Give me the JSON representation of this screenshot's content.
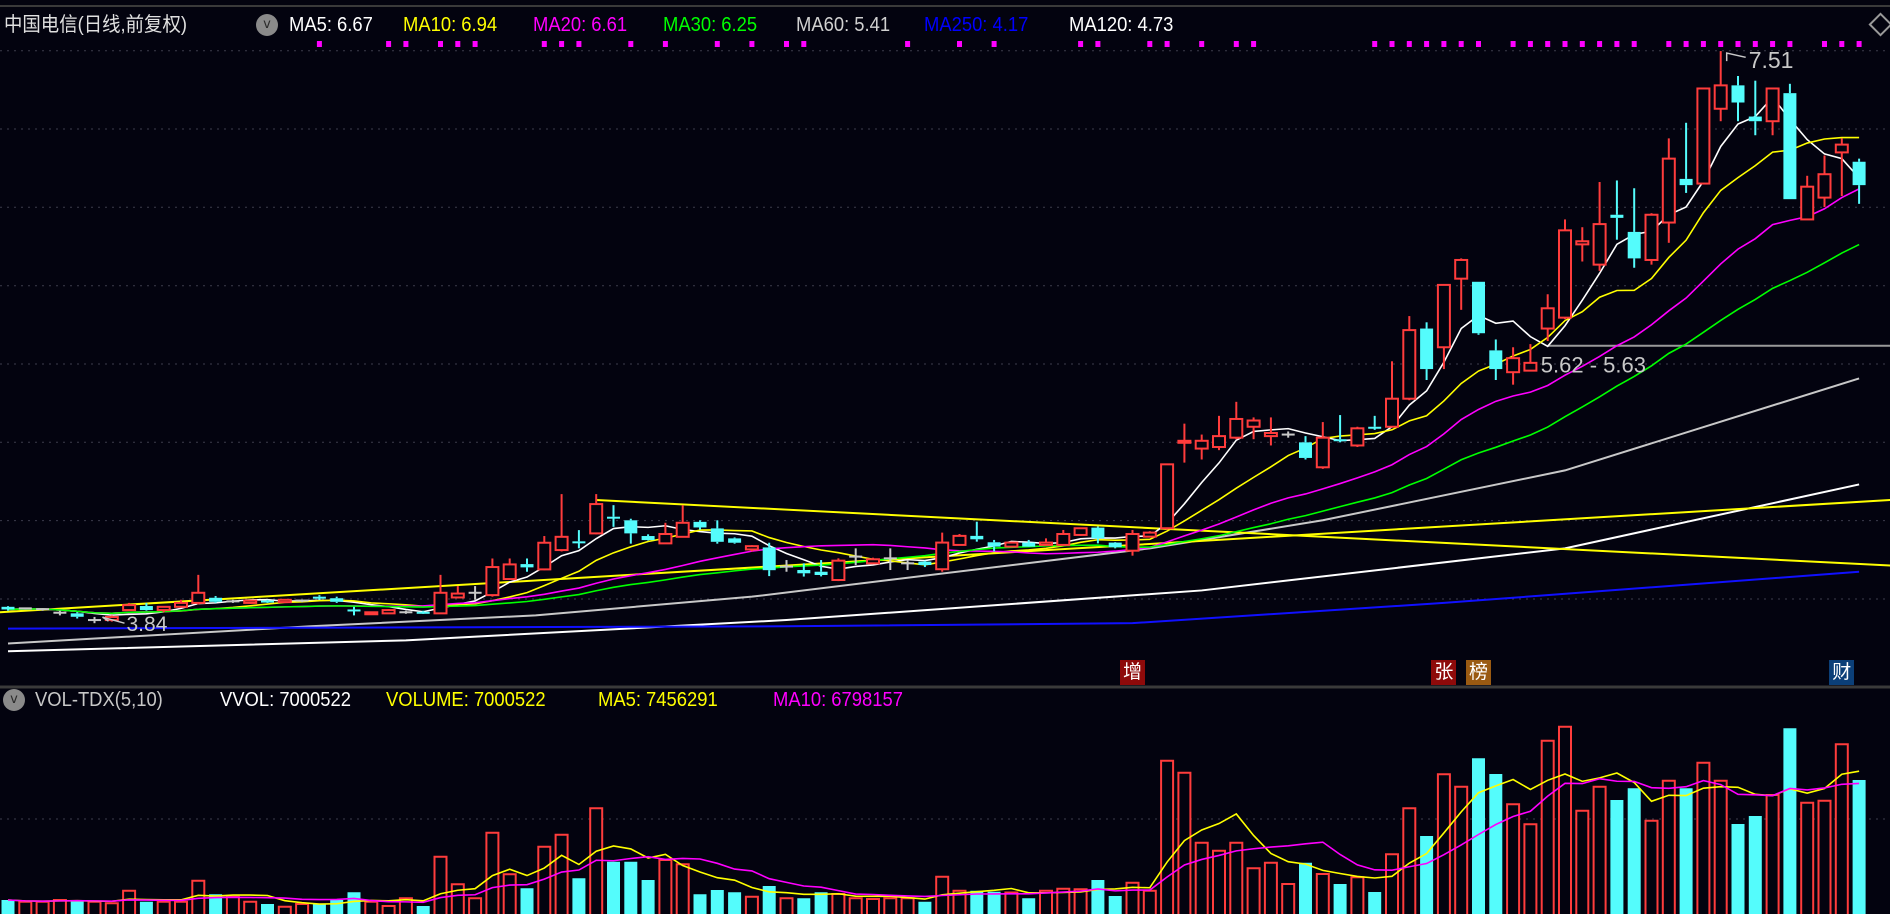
{
  "price_header": {
    "title": "中国电信(日线,前复权)",
    "dropdown_icon": "chevron-down-icon",
    "ma_items": [
      {
        "label": "MA5: 6.67",
        "color": "#ffffff"
      },
      {
        "label": "MA10: 6.94",
        "color": "#ffff00"
      },
      {
        "label": "MA20: 6.61",
        "color": "#ff00ff"
      },
      {
        "label": "MA30: 6.25",
        "color": "#00ff00"
      },
      {
        "label": "MA60: 5.41",
        "color": "#d0d0d0"
      },
      {
        "label": "MA250: 4.17",
        "color": "#0000ff"
      },
      {
        "label": "MA120: 4.73",
        "color": "#ffffff"
      }
    ],
    "corner_icon": "diamond-icon"
  },
  "volume_header": {
    "indicator": "VOL-TDX(5,10)",
    "vvol": "VVOL: 7000522",
    "volume": "VOLUME: 7000522",
    "ma5": "MA5: 7456291",
    "ma10": "MA10: 6798157"
  },
  "colors": {
    "up": "#ff3c3c",
    "down": "#54fcfc",
    "flat": "#c8c8c8",
    "background": "#03030f"
  },
  "chart_data": {
    "type": "candlestick",
    "price_ylim": [
      3.437,
      7.581
    ],
    "volume_ylim": [
      0,
      9800000
    ],
    "annotations": {
      "high": "7.51",
      "low": "3.84",
      "level_label": "5.62 - 5.63",
      "level_value": 5.62,
      "level_from_bar": 89
    },
    "ohlc": [
      [
        3.945,
        3.95,
        3.92,
        3.928
      ],
      [
        3.935,
        3.94,
        3.93,
        3.935
      ],
      [
        3.93,
        3.935,
        3.92,
        3.93
      ],
      [
        3.907,
        3.92,
        3.89,
        3.907
      ],
      [
        3.903,
        3.91,
        3.87,
        3.881
      ],
      [
        3.86,
        3.88,
        3.84,
        3.86
      ],
      [
        3.86,
        3.89,
        3.85,
        3.88
      ],
      [
        3.924,
        3.97,
        3.92,
        3.956
      ],
      [
        3.95,
        3.97,
        3.92,
        3.924
      ],
      [
        3.924,
        3.95,
        3.91,
        3.945
      ],
      [
        3.945,
        3.99,
        3.94,
        3.97
      ],
      [
        3.97,
        4.15,
        3.96,
        4.035
      ],
      [
        4.003,
        4.014,
        3.97,
        3.977
      ],
      [
        3.98,
        3.99,
        3.97,
        3.98
      ],
      [
        3.97,
        3.99,
        3.965,
        3.985
      ],
      [
        3.985,
        3.99,
        3.97,
        3.975
      ],
      [
        3.975,
        3.995,
        3.97,
        3.99
      ],
      [
        3.985,
        3.99,
        3.975,
        3.985
      ],
      [
        4.01,
        4.02,
        3.99,
        4.0
      ],
      [
        4.0,
        4.01,
        3.97,
        3.977
      ],
      [
        3.928,
        3.945,
        3.89,
        3.92
      ],
      [
        3.907,
        3.915,
        3.9,
        3.91
      ],
      [
        3.903,
        3.93,
        3.9,
        3.924
      ],
      [
        3.91,
        3.92,
        3.9,
        3.91
      ],
      [
        3.913,
        3.92,
        3.9,
        3.903
      ],
      [
        3.903,
        4.15,
        3.9,
        4.035
      ],
      [
        4.005,
        4.078,
        4.0,
        4.03
      ],
      [
        4.035,
        4.078,
        3.99,
        4.035
      ],
      [
        4.02,
        4.255,
        4.01,
        4.2
      ],
      [
        4.123,
        4.255,
        4.12,
        4.217
      ],
      [
        4.219,
        4.255,
        4.17,
        4.198
      ],
      [
        4.185,
        4.399,
        4.18,
        4.356
      ],
      [
        4.309,
        4.668,
        4.3,
        4.394
      ],
      [
        4.365,
        4.437,
        4.32,
        4.36
      ],
      [
        4.416,
        4.668,
        4.41,
        4.604
      ],
      [
        4.523,
        4.597,
        4.458,
        4.52
      ],
      [
        4.5,
        4.51,
        4.35,
        4.416
      ],
      [
        4.399,
        4.41,
        4.37,
        4.373
      ],
      [
        4.352,
        4.484,
        4.35,
        4.412
      ],
      [
        4.394,
        4.597,
        4.39,
        4.484
      ],
      [
        4.49,
        4.5,
        4.44,
        4.454
      ],
      [
        4.448,
        4.5,
        4.35,
        4.362
      ],
      [
        4.384,
        4.39,
        4.35,
        4.356
      ],
      [
        4.313,
        4.34,
        4.3,
        4.334
      ],
      [
        4.326,
        4.356,
        4.142,
        4.18
      ],
      [
        4.203,
        4.245,
        4.17,
        4.203
      ],
      [
        4.181,
        4.224,
        4.139,
        4.16
      ],
      [
        4.17,
        4.245,
        4.14,
        4.149
      ],
      [
        4.117,
        4.256,
        4.11,
        4.241
      ],
      [
        4.267,
        4.32,
        4.213,
        4.267
      ],
      [
        4.224,
        4.26,
        4.22,
        4.25
      ],
      [
        4.256,
        4.32,
        4.181,
        4.256
      ],
      [
        4.224,
        4.245,
        4.181,
        4.224
      ],
      [
        4.235,
        4.24,
        4.2,
        4.213
      ],
      [
        4.186,
        4.421,
        4.17,
        4.357
      ],
      [
        4.342,
        4.412,
        4.34,
        4.4
      ],
      [
        4.4,
        4.491,
        4.363,
        4.378
      ],
      [
        4.359,
        4.374,
        4.3,
        4.331
      ],
      [
        4.331,
        4.36,
        4.33,
        4.357
      ],
      [
        4.357,
        4.374,
        4.33,
        4.331
      ],
      [
        4.342,
        4.384,
        4.34,
        4.357
      ],
      [
        4.342,
        4.438,
        4.34,
        4.412
      ],
      [
        4.406,
        4.45,
        4.4,
        4.449
      ],
      [
        4.453,
        4.46,
        4.352,
        4.384
      ],
      [
        4.357,
        4.36,
        4.32,
        4.327
      ],
      [
        4.305,
        4.438,
        4.273,
        4.412
      ],
      [
        4.395,
        4.43,
        4.39,
        4.421
      ],
      [
        4.449,
        4.86,
        4.44,
        4.859
      ],
      [
        5.0,
        5.12,
        4.87,
        5.01
      ],
      [
        4.96,
        5.05,
        4.89,
        5.01
      ],
      [
        4.97,
        5.17,
        4.95,
        5.04
      ],
      [
        5.03,
        5.26,
        5.02,
        5.15
      ],
      [
        5.1,
        5.16,
        5.02,
        5.14
      ],
      [
        5.04,
        5.16,
        4.98,
        5.06
      ],
      [
        5.05,
        5.07,
        5.03,
        5.05
      ],
      [
        5.0,
        5.04,
        4.89,
        4.9
      ],
      [
        4.84,
        5.13,
        4.83,
        5.03
      ],
      [
        5.02,
        5.175,
        5.0,
        5.015
      ],
      [
        4.98,
        5.1,
        4.97,
        5.09
      ],
      [
        5.1,
        5.17,
        5.08,
        5.09
      ],
      [
        5.1,
        5.52,
        5.1,
        5.28
      ],
      [
        5.28,
        5.81,
        5.27,
        5.72
      ],
      [
        5.73,
        5.77,
        5.4,
        5.47
      ],
      [
        5.61,
        6.01,
        5.47,
        6.01
      ],
      [
        6.05,
        6.18,
        5.85,
        6.17
      ],
      [
        6.03,
        6.03,
        5.69,
        5.7
      ],
      [
        5.59,
        5.66,
        5.4,
        5.47
      ],
      [
        5.45,
        5.61,
        5.37,
        5.54
      ],
      [
        5.46,
        5.63,
        5.46,
        5.51
      ],
      [
        5.73,
        5.95,
        5.65,
        5.86
      ],
      [
        5.8,
        6.43,
        5.79,
        6.36
      ],
      [
        6.27,
        6.38,
        6.16,
        6.29
      ],
      [
        6.14,
        6.67,
        6.1,
        6.4
      ],
      [
        6.46,
        6.68,
        6.3,
        6.44
      ],
      [
        6.35,
        6.63,
        6.12,
        6.18
      ],
      [
        6.17,
        6.47,
        6.14,
        6.46
      ],
      [
        6.41,
        6.95,
        6.28,
        6.82
      ],
      [
        6.69,
        7.05,
        6.6,
        6.65
      ],
      [
        6.66,
        7.27,
        6.66,
        7.27
      ],
      [
        7.14,
        7.51,
        7.06,
        7.29
      ],
      [
        7.29,
        7.35,
        7.06,
        7.18
      ],
      [
        7.09,
        7.32,
        6.97,
        7.06
      ],
      [
        7.06,
        7.27,
        6.97,
        7.27
      ],
      [
        7.24,
        7.3,
        6.56,
        6.56
      ],
      [
        6.43,
        6.71,
        6.43,
        6.64
      ],
      [
        6.57,
        6.84,
        6.51,
        6.72
      ],
      [
        6.86,
        6.95,
        6.58,
        6.91
      ],
      [
        6.8,
        6.82,
        6.53,
        6.65
      ]
    ],
    "volume": [
      2200000,
      2130000,
      2130000,
      2200000,
      2200000,
      2130000,
      2070000,
      2570000,
      2130000,
      2130000,
      2130000,
      2970000,
      2430000,
      2330000,
      2130000,
      2040000,
      1930000,
      2040000,
      2040000,
      2200000,
      2510000,
      2130000,
      1960000,
      2270000,
      1960000,
      3930000,
      2830000,
      2270000,
      4890000,
      3230000,
      2670000,
      4330000,
      4810000,
      3070000,
      5870000,
      3730000,
      3730000,
      3000000,
      3800000,
      3630000,
      2430000,
      2600000,
      2510000,
      2330000,
      2760000,
      2270000,
      2270000,
      2510000,
      2440000,
      2270000,
      2240000,
      2270000,
      2270000,
      2130000,
      3130000,
      2570000,
      2570000,
      2530000,
      2500000,
      2270000,
      2570000,
      2650000,
      2630000,
      3000000,
      2360000,
      2890000,
      2570000,
      7770000,
      7290000,
      4490000,
      4170000,
      4490000,
      3470000,
      3690000,
      2840000,
      3690000,
      3240000,
      2840000,
      3110000,
      2520000,
      4030000,
      5870000,
      4760000,
      7230000,
      6730000,
      7870000,
      7240000,
      6030000,
      5230000,
      8570000,
      9130000,
      5770000,
      6730000,
      6200000,
      6670000,
      5370000,
      6970000,
      6670000,
      7690000,
      6970000,
      5240000,
      5560000,
      6400000,
      9070000,
      6090000,
      6170000,
      8430000,
      7000522
    ],
    "computed_ma": [
      {
        "period": 5,
        "color": "#ffffff"
      },
      {
        "period": 10,
        "color": "#ffff00"
      },
      {
        "period": 20,
        "color": "#ff00ff"
      },
      {
        "period": 30,
        "color": "#00ff00"
      }
    ],
    "long_ma": [
      {
        "name": "MA60",
        "color": "#c8c8c8",
        "points": [
          [
            0,
            3.71
          ],
          [
            17.5,
            3.82
          ],
          [
            30.5,
            3.89
          ],
          [
            43,
            4.01
          ],
          [
            66,
            4.32
          ],
          [
            76,
            4.5
          ],
          [
            90,
            4.82
          ],
          [
            107,
            5.41
          ]
        ]
      },
      {
        "name": "MA120",
        "color": "#ffffff",
        "points": [
          [
            0,
            3.66
          ],
          [
            23,
            3.73
          ],
          [
            45,
            3.86
          ],
          [
            69,
            4.05
          ],
          [
            90,
            4.32
          ],
          [
            107,
            4.73
          ]
        ]
      },
      {
        "name": "MA250",
        "color": "#1010ff",
        "points": [
          [
            0,
            3.805
          ],
          [
            45,
            3.82
          ],
          [
            65,
            3.84
          ],
          [
            83,
            3.97
          ],
          [
            107,
            4.17
          ]
        ]
      }
    ],
    "trend_lines": [
      {
        "color": "#ffff00",
        "from": [
          34,
          4.63
        ],
        "to": [
          108.8,
          4.21
        ]
      },
      {
        "color": "#ffff00",
        "from": [
          -0.5,
          3.91
        ],
        "to": [
          108.8,
          4.63
        ]
      }
    ],
    "volume_ma": [
      {
        "period": 5,
        "color": "#ffff00"
      },
      {
        "period": 10,
        "color": "#ff00ff"
      }
    ],
    "signal_marks": [
      18,
      22,
      23,
      25,
      26,
      27,
      31,
      32,
      33,
      36,
      38,
      41,
      43,
      45,
      46,
      52,
      55,
      57,
      62,
      63,
      66,
      67,
      69,
      71,
      72,
      79,
      80,
      81,
      82,
      83,
      84,
      85,
      87,
      88,
      89,
      90,
      91,
      92,
      93,
      94,
      96,
      97,
      98,
      99,
      100,
      101,
      102,
      103,
      105,
      106,
      107
    ],
    "badges": [
      {
        "bar": 65,
        "text": "增",
        "color": "#8e0a0a"
      },
      {
        "bar": 83,
        "text": "张",
        "color": "#8e0a0a"
      },
      {
        "bar": 85,
        "text": "榜",
        "color": "#9a5a12"
      },
      {
        "bar": 106,
        "text": "财",
        "color": "#0b3f78"
      }
    ]
  }
}
